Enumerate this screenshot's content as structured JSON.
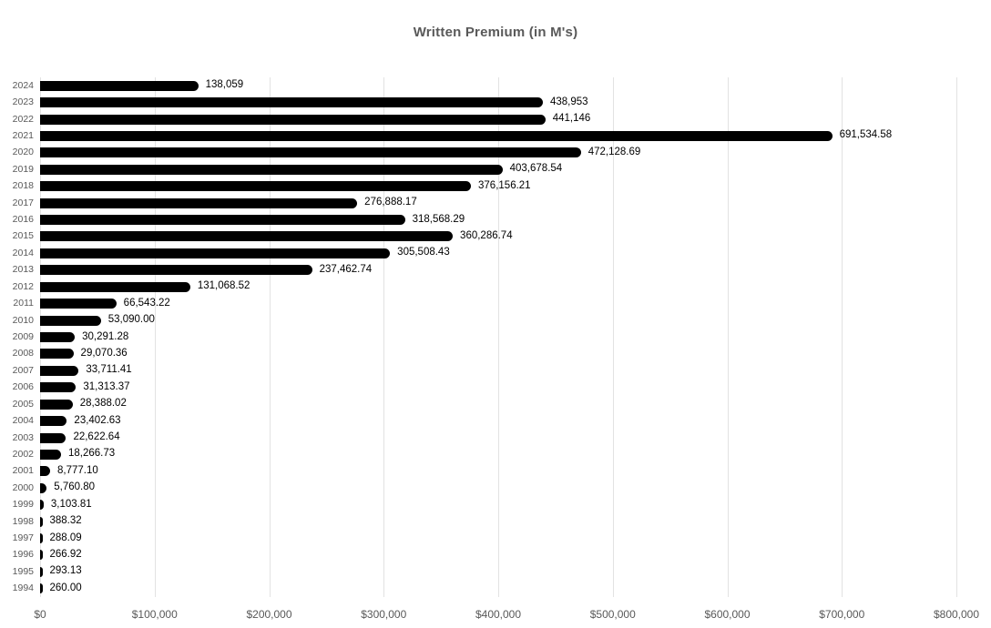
{
  "chart_data": {
    "type": "bar",
    "orientation": "horizontal",
    "title": "Written Premium (in M's)",
    "categories": [
      "2024",
      "2023",
      "2022",
      "2021",
      "2020",
      "2019",
      "2018",
      "2017",
      "2016",
      "2015",
      "2014",
      "2013",
      "2012",
      "2011",
      "2010",
      "2009",
      "2008",
      "2007",
      "2006",
      "2005",
      "2004",
      "2003",
      "2002",
      "2001",
      "2000",
      "1999",
      "1998",
      "1997",
      "1996",
      "1995",
      "1994"
    ],
    "values": [
      138059,
      438953,
      441146,
      691534.58,
      472128.69,
      403678.54,
      376156.21,
      276888.17,
      318568.29,
      360286.74,
      305508.43,
      237462.74,
      131068.52,
      66543.22,
      53090.0,
      30291.28,
      29070.36,
      33711.41,
      31313.37,
      28388.02,
      23402.63,
      22622.64,
      18266.73,
      8777.1,
      5760.8,
      3103.81,
      388.32,
      288.09,
      266.92,
      293.13,
      260.0
    ],
    "value_labels": [
      "138,059",
      "438,953",
      "441,146",
      "691,534.58",
      "472,128.69",
      "403,678.54",
      "376,156.21",
      "276,888.17",
      "318,568.29",
      "360,286.74",
      "305,508.43",
      "237,462.74",
      "131,068.52",
      "66,543.22",
      "53,090.00",
      "30,291.28",
      "29,070.36",
      "33,711.41",
      "31,313.37",
      "28,388.02",
      "23,402.63",
      "22,622.64",
      "18,266.73",
      "8,777.10",
      "5,760.80",
      "3,103.81",
      "388.32",
      "288.09",
      "266.92",
      "293.13",
      "260.00"
    ],
    "x_ticks": [
      "$0",
      "$100,000",
      "$200,000",
      "$300,000",
      "$400,000",
      "$500,000",
      "$600,000",
      "$700,000",
      "$800,000"
    ],
    "xlim": [
      0,
      800000
    ],
    "xlabel": "",
    "ylabel": "",
    "grid": "vertical",
    "legend": "none",
    "bar_color": "#000000",
    "value_label_color": "#000000",
    "axis_text_color": "#595959",
    "gridline_color": "#e2e2e2"
  }
}
